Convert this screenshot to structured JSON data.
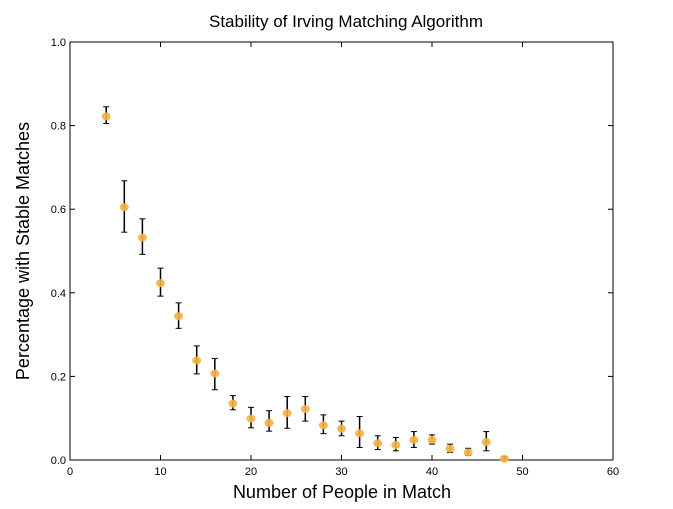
{
  "chart_data": {
    "type": "scatter",
    "title": "Stability of Irving Matching Algorithm",
    "xlabel": "Number of People in Match",
    "ylabel": "Percentage with Stable Matches",
    "xlim": [
      0,
      60
    ],
    "ylim": [
      0.0,
      1.0
    ],
    "xticks": [
      0,
      10,
      20,
      30,
      40,
      50,
      60
    ],
    "yticks": [
      0.0,
      0.2,
      0.4,
      0.6,
      0.8,
      1.0
    ],
    "xtick_labels": [
      "0",
      "10",
      "20",
      "30",
      "40",
      "50",
      "60"
    ],
    "ytick_labels": [
      "0.0",
      "0.2",
      "0.4",
      "0.6",
      "0.8",
      "1.0"
    ],
    "grid": false,
    "marker_color": "#f5b041",
    "errorbar_color": "#000000",
    "points": [
      {
        "x": 4,
        "y": 0.822,
        "lo": 0.805,
        "hi": 0.845
      },
      {
        "x": 6,
        "y": 0.605,
        "lo": 0.545,
        "hi": 0.668
      },
      {
        "x": 8,
        "y": 0.532,
        "lo": 0.492,
        "hi": 0.577
      },
      {
        "x": 10,
        "y": 0.423,
        "lo": 0.392,
        "hi": 0.459
      },
      {
        "x": 12,
        "y": 0.344,
        "lo": 0.315,
        "hi": 0.376
      },
      {
        "x": 14,
        "y": 0.238,
        "lo": 0.206,
        "hi": 0.273
      },
      {
        "x": 16,
        "y": 0.207,
        "lo": 0.168,
        "hi": 0.243
      },
      {
        "x": 18,
        "y": 0.135,
        "lo": 0.12,
        "hi": 0.154
      },
      {
        "x": 20,
        "y": 0.099,
        "lo": 0.077,
        "hi": 0.126
      },
      {
        "x": 22,
        "y": 0.089,
        "lo": 0.069,
        "hi": 0.118
      },
      {
        "x": 24,
        "y": 0.112,
        "lo": 0.076,
        "hi": 0.152
      },
      {
        "x": 26,
        "y": 0.122,
        "lo": 0.093,
        "hi": 0.152
      },
      {
        "x": 28,
        "y": 0.083,
        "lo": 0.063,
        "hi": 0.108
      },
      {
        "x": 30,
        "y": 0.075,
        "lo": 0.058,
        "hi": 0.093
      },
      {
        "x": 32,
        "y": 0.064,
        "lo": 0.03,
        "hi": 0.104
      },
      {
        "x": 34,
        "y": 0.04,
        "lo": 0.025,
        "hi": 0.058
      },
      {
        "x": 36,
        "y": 0.036,
        "lo": 0.022,
        "hi": 0.054
      },
      {
        "x": 38,
        "y": 0.048,
        "lo": 0.03,
        "hi": 0.068
      },
      {
        "x": 40,
        "y": 0.048,
        "lo": 0.038,
        "hi": 0.06
      },
      {
        "x": 42,
        "y": 0.027,
        "lo": 0.018,
        "hi": 0.038
      },
      {
        "x": 44,
        "y": 0.018,
        "lo": 0.011,
        "hi": 0.028
      },
      {
        "x": 46,
        "y": 0.043,
        "lo": 0.022,
        "hi": 0.068
      },
      {
        "x": 48,
        "y": 0.003,
        "lo": 0.0,
        "hi": 0.008
      }
    ]
  }
}
